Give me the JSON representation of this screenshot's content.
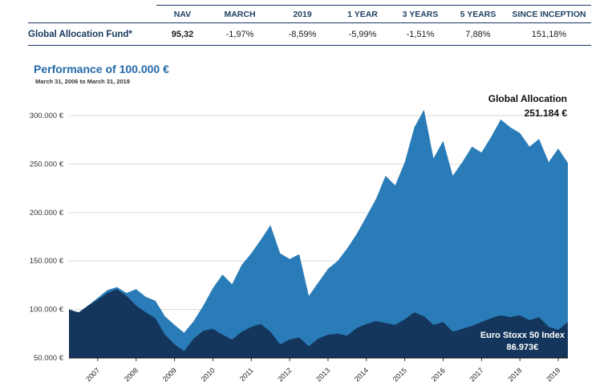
{
  "colors": {
    "accent_navy": "#17375E",
    "title_blue": "#2268A8",
    "series_light_blue": "#2A7CB8",
    "series_dark_navy": "#14365C"
  },
  "table": {
    "row_label": "Global Allocation Fund*",
    "headers": [
      "NAV",
      "MARCH",
      "2019",
      "1 YEAR",
      "3 YEARS",
      "5 YEARS",
      "SINCE INCEPTION"
    ],
    "values": [
      "95,32",
      "-1,97%",
      "-8,59%",
      "-5,99%",
      "-1,51%",
      "7,88%",
      "151,18%"
    ]
  },
  "chart": {
    "title": "Performance of 100.000 €",
    "subtitle": "March 31, 2006 to March 31, 2019",
    "annotations": {
      "global_allocation": {
        "label": "Global Allocation",
        "value": "251.184 €"
      },
      "euro_stoxx": {
        "label": "Euro Stoxx 50 Index",
        "value": "86.973€"
      }
    }
  },
  "chart_data": {
    "type": "area",
    "title": "Performance of 100.000 €",
    "subtitle": "March 31, 2006 to March 31, 2019",
    "xlabel": "",
    "ylabel": "",
    "ylim": [
      50000,
      310000
    ],
    "yticks": [
      50000,
      100000,
      150000,
      200000,
      250000,
      300000
    ],
    "ytick_labels": [
      "50.000 €",
      "100.000 €",
      "150.000 €",
      "200.000 €",
      "250.000 €",
      "300.000 €"
    ],
    "xticks": [
      2007,
      2008,
      2009,
      2010,
      2011,
      2012,
      2013,
      2014,
      2015,
      2016,
      2017,
      2018,
      2019
    ],
    "xtick_labels": [
      "2007",
      "2008",
      "2009",
      "2010",
      "2011",
      "2012",
      "2013",
      "2014",
      "2015",
      "2016",
      "2017",
      "2018",
      "2019"
    ],
    "grid": true,
    "legend_position": "annotations-on-chart",
    "x": [
      2006.25,
      2006.5,
      2006.75,
      2007,
      2007.25,
      2007.5,
      2007.75,
      2008,
      2008.25,
      2008.5,
      2008.75,
      2009,
      2009.25,
      2009.5,
      2009.75,
      2010,
      2010.25,
      2010.5,
      2010.75,
      2011,
      2011.25,
      2011.5,
      2011.75,
      2012,
      2012.25,
      2012.5,
      2012.75,
      2013,
      2013.25,
      2013.5,
      2013.75,
      2014,
      2014.25,
      2014.5,
      2014.75,
      2015,
      2015.25,
      2015.5,
      2015.75,
      2016,
      2016.25,
      2016.5,
      2016.75,
      2017,
      2017.25,
      2017.5,
      2017.75,
      2018,
      2018.25,
      2018.5,
      2018.75,
      2019,
      2019.25
    ],
    "series": [
      {
        "name": "Global Allocation",
        "color": "#2A7CB8",
        "end_value_label": "251.184 €",
        "values": [
          100000,
          96000,
          104000,
          112000,
          120000,
          123000,
          117000,
          121000,
          113000,
          109000,
          93000,
          84000,
          76000,
          88000,
          104000,
          122000,
          136000,
          126000,
          146000,
          158000,
          172000,
          187000,
          158000,
          152000,
          157000,
          114000,
          128000,
          142000,
          150000,
          163000,
          178000,
          196000,
          214000,
          238000,
          228000,
          252000,
          288000,
          306000,
          256000,
          274000,
          238000,
          252000,
          268000,
          262000,
          278000,
          296000,
          288000,
          282000,
          268000,
          276000,
          252000,
          266000,
          251184
        ]
      },
      {
        "name": "Euro Stoxx 50 Index",
        "color": "#14365C",
        "end_value_label": "86.973€",
        "values": [
          100000,
          97000,
          104000,
          110000,
          117000,
          121000,
          114000,
          104000,
          97000,
          91000,
          74000,
          64000,
          57000,
          70000,
          78000,
          80000,
          74000,
          69000,
          77000,
          82000,
          85000,
          77000,
          64000,
          69000,
          71000,
          62000,
          70000,
          74000,
          75000,
          73000,
          81000,
          85000,
          88000,
          86000,
          84000,
          90000,
          97000,
          93000,
          84000,
          87000,
          77000,
          80000,
          83000,
          87000,
          91000,
          94000,
          92000,
          94000,
          89000,
          92000,
          82000,
          79000,
          86973
        ]
      }
    ]
  }
}
